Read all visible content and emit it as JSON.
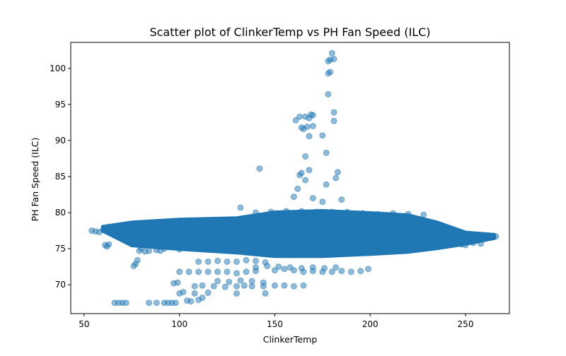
{
  "chart_data": {
    "type": "scatter",
    "title": "Scatter plot of ClinkerTemp vs PH Fan Speed (ILC)",
    "xlabel": "ClinkerTemp",
    "ylabel": "PH Fan Speed (ILC)",
    "xlim": [
      43,
      273
    ],
    "ylim": [
      66.0,
      103.6
    ],
    "xticks": [
      50,
      100,
      150,
      200,
      250
    ],
    "yticks": [
      70,
      75,
      80,
      85,
      90,
      95,
      100
    ],
    "grid": false,
    "legend": "none",
    "marker_color": "#1f77b4",
    "marker_alpha": 0.5,
    "points": [
      [
        54,
        77.5
      ],
      [
        56,
        77.4
      ],
      [
        58,
        77.3
      ],
      [
        60,
        77.6
      ],
      [
        62,
        77.5
      ],
      [
        61,
        75.5
      ],
      [
        62,
        75.3
      ],
      [
        63,
        75.6
      ],
      [
        64,
        77.2
      ],
      [
        66,
        77.6
      ],
      [
        66,
        67.5
      ],
      [
        68,
        67.5
      ],
      [
        70,
        67.5
      ],
      [
        72,
        67.5
      ],
      [
        76,
        72.6
      ],
      [
        77,
        72.9
      ],
      [
        78,
        73.4
      ],
      [
        79,
        74.7
      ],
      [
        80,
        75.0
      ],
      [
        82,
        74.6
      ],
      [
        84,
        67.5
      ],
      [
        88,
        67.5
      ],
      [
        92,
        67.5
      ],
      [
        94,
        67.5
      ],
      [
        96,
        67.5
      ],
      [
        98,
        67.5
      ],
      [
        84,
        74.7
      ],
      [
        88,
        74.8
      ],
      [
        92,
        75.0
      ],
      [
        96,
        75.3
      ],
      [
        97,
        70.2
      ],
      [
        99,
        70.3
      ],
      [
        100,
        68.8
      ],
      [
        102,
        69.0
      ],
      [
        104,
        67.8
      ],
      [
        106,
        67.7
      ],
      [
        110,
        67.9
      ],
      [
        112,
        68.2
      ],
      [
        108,
        68.8
      ],
      [
        115,
        68.9
      ],
      [
        100,
        71.8
      ],
      [
        105,
        71.8
      ],
      [
        110,
        71.8
      ],
      [
        115,
        71.8
      ],
      [
        120,
        71.8
      ],
      [
        125,
        71.8
      ],
      [
        130,
        71.6
      ],
      [
        135,
        71.8
      ],
      [
        140,
        71.9
      ],
      [
        110,
        73.2
      ],
      [
        115,
        73.2
      ],
      [
        120,
        73.3
      ],
      [
        125,
        73.2
      ],
      [
        130,
        73.2
      ],
      [
        135,
        73.4
      ],
      [
        140,
        73.3
      ],
      [
        145,
        73.1
      ],
      [
        108,
        69.8
      ],
      [
        112,
        69.9
      ],
      [
        118,
        69.8
      ],
      [
        124,
        69.7
      ],
      [
        130,
        69.8
      ],
      [
        134,
        69.9
      ],
      [
        138,
        69.8
      ],
      [
        144,
        69.8
      ],
      [
        150,
        69.9
      ],
      [
        155,
        69.9
      ],
      [
        160,
        69.8
      ],
      [
        165,
        69.9
      ],
      [
        120,
        70.5
      ],
      [
        126,
        70.4
      ],
      [
        132,
        70.6
      ],
      [
        138,
        70.5
      ],
      [
        144,
        70.3
      ],
      [
        130,
        68.8
      ],
      [
        145,
        68.8
      ],
      [
        150,
        72.0
      ],
      [
        155,
        72.2
      ],
      [
        160,
        72.0
      ],
      [
        165,
        71.8
      ],
      [
        170,
        71.9
      ],
      [
        175,
        71.8
      ],
      [
        180,
        71.8
      ],
      [
        185,
        71.9
      ],
      [
        190,
        71.8
      ],
      [
        195,
        71.9
      ],
      [
        199,
        72.2
      ],
      [
        140,
        72.4
      ],
      [
        146,
        72.6
      ],
      [
        152,
        72.5
      ],
      [
        158,
        72.4
      ],
      [
        164,
        72.3
      ],
      [
        170,
        72.4
      ],
      [
        176,
        72.3
      ],
      [
        182,
        72.4
      ],
      [
        122,
        76.5
      ],
      [
        132,
        76.4
      ],
      [
        142,
        76.6
      ],
      [
        152,
        76.3
      ],
      [
        160,
        76.5
      ],
      [
        172,
        76.6
      ],
      [
        184,
        76.4
      ],
      [
        196,
        76.2
      ],
      [
        208,
        76.6
      ],
      [
        220,
        76.5
      ],
      [
        132,
        80.7
      ],
      [
        140,
        80.0
      ],
      [
        148,
        80.1
      ],
      [
        156,
        80.2
      ],
      [
        164,
        80.2
      ],
      [
        172,
        80.1
      ],
      [
        180,
        80.1
      ],
      [
        188,
        80.1
      ],
      [
        196,
        79.9
      ],
      [
        204,
        79.8
      ],
      [
        212,
        79.9
      ],
      [
        220,
        79.8
      ],
      [
        228,
        79.7
      ],
      [
        80,
        78.2
      ],
      [
        90,
        78.4
      ],
      [
        100,
        78.6
      ],
      [
        110,
        78.6
      ],
      [
        120,
        78.5
      ],
      [
        130,
        78.7
      ],
      [
        140,
        78.6
      ],
      [
        90,
        74.7
      ],
      [
        100,
        74.9
      ],
      [
        110,
        75.0
      ],
      [
        120,
        75.1
      ],
      [
        130,
        75.1
      ],
      [
        140,
        75.0
      ],
      [
        150,
        75.0
      ],
      [
        160,
        74.9
      ],
      [
        170,
        75.0
      ],
      [
        180,
        75.0
      ],
      [
        190,
        75.1
      ],
      [
        200,
        75.2
      ],
      [
        210,
        75.2
      ],
      [
        220,
        75.3
      ],
      [
        230,
        75.4
      ],
      [
        240,
        75.4
      ],
      [
        250,
        75.5
      ],
      [
        230,
        77.8
      ],
      [
        235,
        77.4
      ],
      [
        240,
        76.8
      ],
      [
        245,
        76.7
      ],
      [
        250,
        76.6
      ],
      [
        255,
        76.7
      ],
      [
        260,
        76.7
      ],
      [
        263,
        76.7
      ],
      [
        266,
        76.7
      ],
      [
        258,
        75.7
      ],
      [
        254,
        75.8
      ],
      [
        248,
        75.6
      ],
      [
        142,
        86.1
      ],
      [
        160,
        82.2
      ],
      [
        162,
        83.3
      ],
      [
        163,
        85.2
      ],
      [
        164,
        85.5
      ],
      [
        166,
        84.5
      ],
      [
        168,
        85.9
      ],
      [
        170,
        82.0
      ],
      [
        175,
        81.5
      ],
      [
        185,
        81.8
      ],
      [
        177,
        83.9
      ],
      [
        183,
        85.6
      ],
      [
        182,
        84.8
      ],
      [
        161,
        92.8
      ],
      [
        163,
        93.3
      ],
      [
        164,
        91.8
      ],
      [
        165,
        91.6
      ],
      [
        166,
        93.3
      ],
      [
        167,
        91.9
      ],
      [
        168,
        93.1
      ],
      [
        169,
        93.6
      ],
      [
        170,
        92.0
      ],
      [
        168,
        90.6
      ],
      [
        166,
        87.8
      ],
      [
        170,
        93.5
      ],
      [
        175,
        90.7
      ],
      [
        177,
        88.3
      ],
      [
        181,
        92.7
      ],
      [
        181,
        93.9
      ],
      [
        178,
        96.4
      ],
      [
        178,
        99.3
      ],
      [
        179,
        99.5
      ],
      [
        178,
        101.0
      ],
      [
        179,
        101.2
      ],
      [
        181,
        101.3
      ],
      [
        180,
        102.1
      ]
    ]
  }
}
